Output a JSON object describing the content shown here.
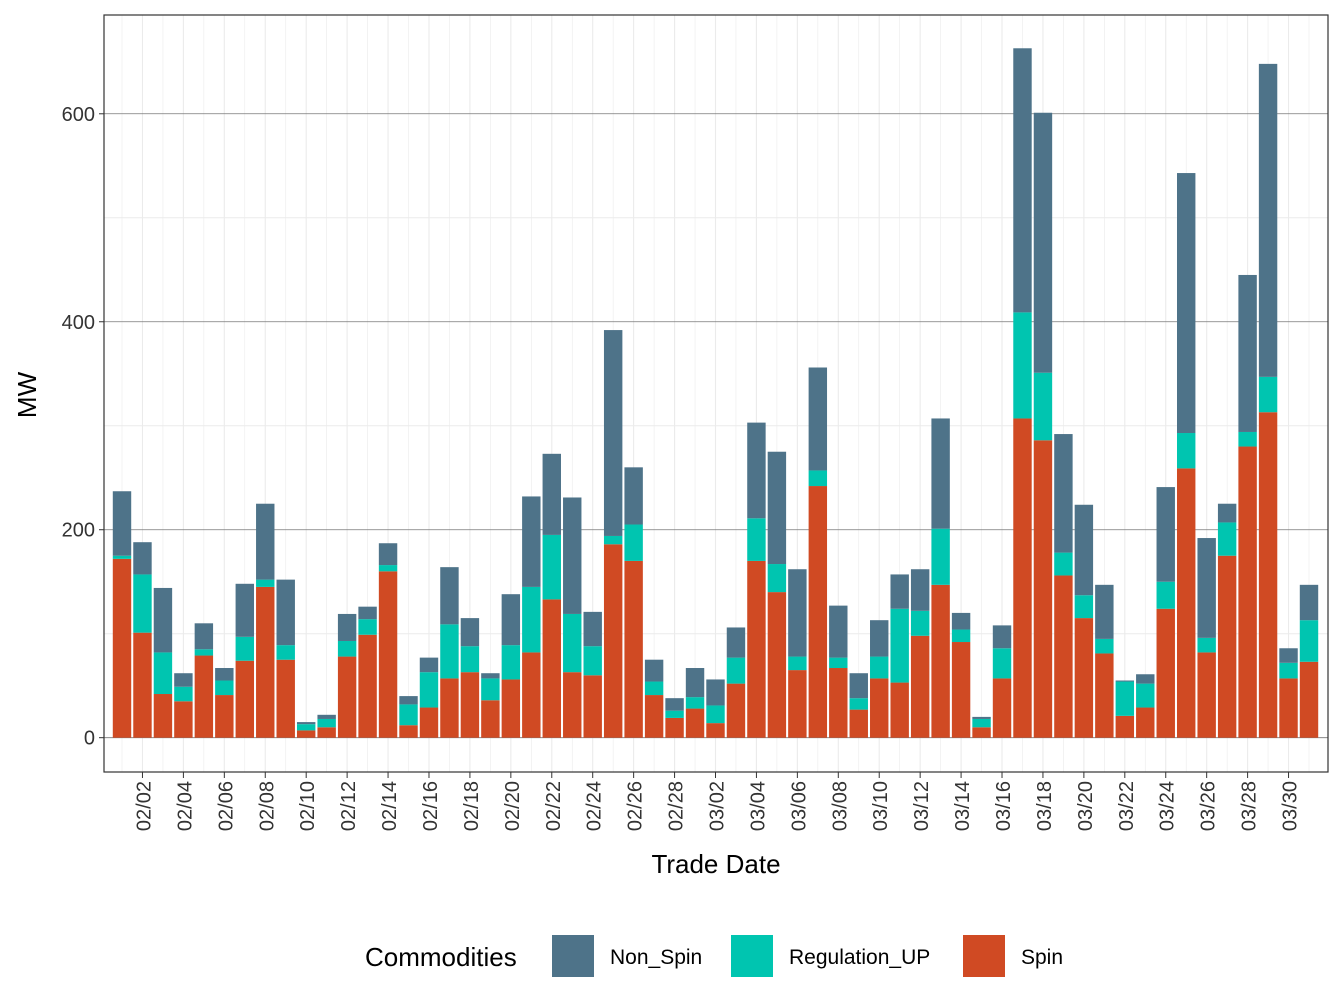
{
  "chart_data": {
    "type": "stacked_bar",
    "x_label": "Trade Date",
    "y_label": "MW",
    "categories": [
      null,
      "02/02",
      null,
      "02/04",
      null,
      "02/06",
      null,
      "02/08",
      null,
      "02/10",
      null,
      "02/12",
      null,
      "02/14",
      null,
      "02/16",
      null,
      "02/18",
      null,
      "02/20",
      null,
      "02/22",
      null,
      "02/24",
      null,
      "02/26",
      null,
      "02/28",
      null,
      "03/02",
      null,
      "03/04",
      null,
      "03/06",
      null,
      "03/08",
      null,
      "03/10",
      null,
      "03/12",
      null,
      "03/14",
      null,
      "03/16",
      null,
      "03/18",
      null,
      "03/20",
      null,
      "03/22",
      null,
      "03/24",
      null,
      "03/26",
      null,
      "03/28",
      null,
      "03/30",
      null
    ],
    "series": [
      {
        "name": "Non_Spin",
        "color": "#4e7389",
        "values": [
          62,
          31,
          62,
          13,
          25,
          12,
          51,
          73,
          63,
          2,
          4,
          26,
          12,
          21,
          8,
          14,
          55,
          27,
          5,
          49,
          87,
          78,
          112,
          33,
          198,
          55,
          21,
          12,
          28,
          25,
          29,
          92,
          108,
          84,
          99,
          50,
          24,
          35,
          33,
          40,
          106,
          16,
          2,
          22,
          254,
          250,
          114,
          87,
          52,
          1,
          9,
          91,
          250,
          96,
          18,
          151,
          301,
          14,
          34
        ]
      },
      {
        "name": "Regulation_UP",
        "color": "#00c5b0",
        "values": [
          3,
          56,
          40,
          14,
          6,
          14,
          23,
          7,
          14,
          6,
          8,
          15,
          15,
          6,
          20,
          34,
          52,
          25,
          21,
          33,
          63,
          62,
          56,
          28,
          8,
          35,
          13,
          7,
          11,
          17,
          25,
          41,
          27,
          13,
          15,
          10,
          11,
          21,
          71,
          24,
          54,
          12,
          8,
          29,
          102,
          65,
          22,
          22,
          14,
          33,
          23,
          26,
          34,
          14,
          32,
          14,
          34,
          15,
          40
        ]
      },
      {
        "name": "Spin",
        "color": "#d04a23",
        "values": [
          172,
          101,
          42,
          35,
          79,
          41,
          74,
          145,
          75,
          7,
          10,
          78,
          99,
          160,
          12,
          29,
          57,
          63,
          36,
          56,
          82,
          133,
          63,
          60,
          186,
          170,
          41,
          19,
          28,
          14,
          52,
          170,
          140,
          65,
          242,
          67,
          27,
          57,
          53,
          98,
          147,
          92,
          10,
          57,
          307,
          286,
          156,
          115,
          81,
          21,
          29,
          124,
          259,
          82,
          175,
          280,
          313,
          57,
          73
        ]
      }
    ],
    "legend_title": "Commodities",
    "ylim": [
      -33,
      695
    ],
    "yticks": [
      0,
      200,
      400,
      600
    ],
    "grid": true
  }
}
